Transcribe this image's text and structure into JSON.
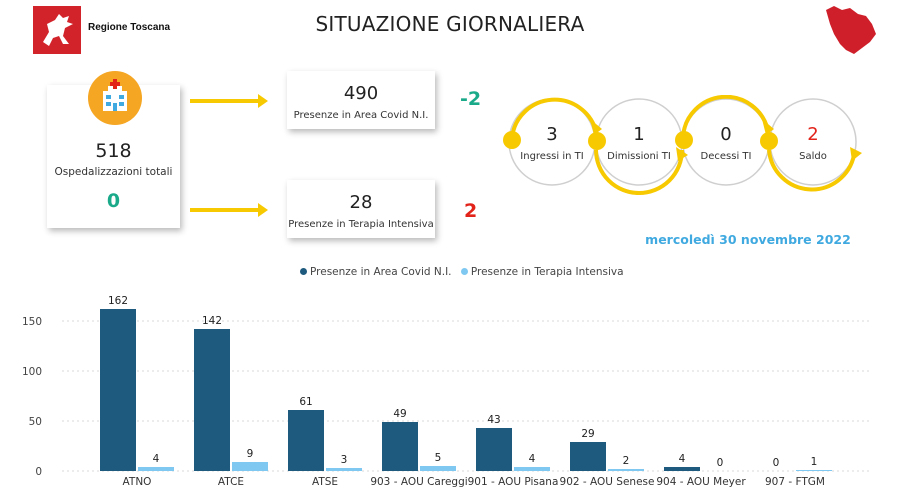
{
  "header": {
    "org_name": "Regione Toscana",
    "title": "SITUAZIONE GIORNALIERA"
  },
  "total": {
    "value": "518",
    "label": "Ospedalizzazioni totali",
    "delta": "0"
  },
  "area_covid": {
    "value": "490",
    "label": "Presenze in Area Covid N.I.",
    "delta": "-2"
  },
  "terapia_intensiva": {
    "value": "28",
    "label": "Presenze in Terapia Intensiva",
    "delta": "2"
  },
  "icu_flow": [
    {
      "value": "3",
      "label": "Ingressi in TI"
    },
    {
      "value": "1",
      "label": "Dimissioni TI"
    },
    {
      "value": "0",
      "label": "Decessi TI"
    },
    {
      "value": "2",
      "label": "Saldo"
    }
  ],
  "date": "mercoledì 30 novembre 2022",
  "colors": {
    "accent_yellow": "#f7c900",
    "positive_green": "#1aaa8a",
    "negative_red": "#e2231a",
    "series_dark": "#1e5a7d",
    "series_light": "#7ec8f2",
    "date_blue": "#3fa9e0"
  },
  "chart_data": {
    "type": "bar",
    "categories": [
      "ATNO",
      "ATCE",
      "ATSE",
      "903 - AOU Careggi",
      "901 - AOU Pisana",
      "902 - AOU Senese",
      "904 - AOU Meyer",
      "907 - FTGM"
    ],
    "series": [
      {
        "name": "Presenze in Area Covid N.I.",
        "color": "#1e5a7d",
        "values": [
          162,
          142,
          61,
          49,
          43,
          29,
          4,
          0
        ]
      },
      {
        "name": "Presenze in Terapia Intensiva",
        "color": "#7ec8f2",
        "values": [
          4,
          9,
          3,
          5,
          4,
          2,
          0,
          1
        ]
      }
    ],
    "yticks": [
      "0",
      "50",
      "100",
      "150"
    ],
    "ylim": [
      0,
      170
    ],
    "grid": true,
    "legend": "top-center"
  }
}
